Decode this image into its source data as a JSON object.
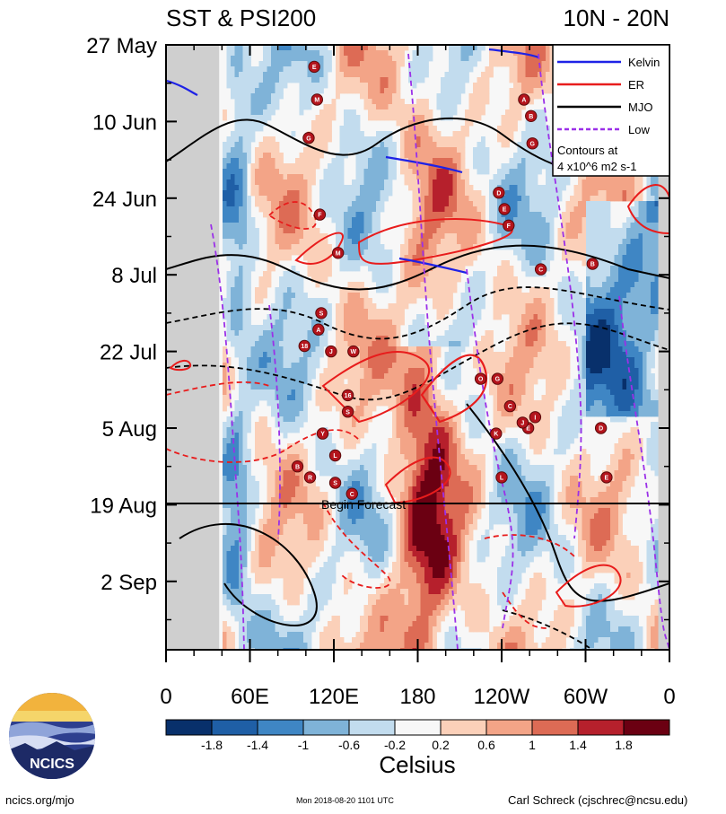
{
  "chart_data": {
    "type": "heatmap",
    "title_left": "SST & PSI200",
    "title_right": "10N - 20N",
    "y_tick_labels": [
      "27 May",
      "10 Jun",
      "24 Jun",
      "8 Jul",
      "22 Jul",
      "5 Aug",
      "19 Aug",
      "2 Sep"
    ],
    "x_tick_labels": [
      "0",
      "60E",
      "120E",
      "180",
      "120W",
      "60W",
      "0"
    ],
    "x_range_deg_east": [
      0,
      360
    ],
    "forecast_start": "19 Aug",
    "forecast_label": "Begin Forecast",
    "legend": {
      "entries": [
        {
          "name": "Kelvin",
          "color": "#1e22e6"
        },
        {
          "name": "ER",
          "color": "#e81c1c"
        },
        {
          "name": "MJO",
          "color": "#000000"
        },
        {
          "name": "Low",
          "color": "#9b30e8"
        }
      ],
      "note_line1": "Contours at",
      "note_line2": "4 x10^6 m2 s-1",
      "placement": "top-right"
    },
    "colorbar": {
      "unit_label": "Celsius",
      "tick_labels": [
        "-1.8",
        "-1.4",
        "-1",
        "-0.6",
        "-0.2",
        "0.2",
        "0.6",
        "1",
        "1.4",
        "1.8"
      ],
      "colors": [
        "#08306b",
        "#1f5fa6",
        "#3f86c4",
        "#7fb3d8",
        "#c2dcee",
        "#f7f7f7",
        "#fbd0b9",
        "#f3a487",
        "#dd6b55",
        "#b6202c",
        "#6b0012"
      ]
    },
    "storm_markers": [
      {
        "label": "E",
        "lon": 106,
        "date": "31 May"
      },
      {
        "label": "M",
        "lon": 108,
        "date": "6 Jun"
      },
      {
        "label": "G",
        "lon": 102,
        "date": "13 Jun"
      },
      {
        "label": "F",
        "lon": 110,
        "date": "27 Jun"
      },
      {
        "label": "M",
        "lon": 123,
        "date": "4 Jul"
      },
      {
        "label": "S",
        "lon": 111,
        "date": "15 Jul"
      },
      {
        "label": "A",
        "lon": 109,
        "date": "18 Jul"
      },
      {
        "label": "18",
        "lon": 99,
        "date": "21 Jul"
      },
      {
        "label": "J",
        "lon": 118,
        "date": "22 Jul"
      },
      {
        "label": "W",
        "lon": 134,
        "date": "22 Jul"
      },
      {
        "label": "16",
        "lon": 130,
        "date": "30 Jul"
      },
      {
        "label": "S",
        "lon": 130,
        "date": "2 Aug"
      },
      {
        "label": "Y",
        "lon": 112,
        "date": "6 Aug"
      },
      {
        "label": "L",
        "lon": 121,
        "date": "10 Aug"
      },
      {
        "label": "B",
        "lon": 94,
        "date": "12 Aug"
      },
      {
        "label": "R",
        "lon": 103,
        "date": "14 Aug"
      },
      {
        "label": "S",
        "lon": 121,
        "date": "15 Aug"
      },
      {
        "label": "C",
        "lon": 133,
        "date": "17 Aug"
      },
      {
        "label": "E",
        "lon": 259,
        "date": "5 Aug"
      },
      {
        "label": "O",
        "lon": 225,
        "date": "27 Jul"
      },
      {
        "label": "G",
        "lon": 237,
        "date": "27 Jul"
      },
      {
        "label": "C",
        "lon": 246,
        "date": "1 Aug"
      },
      {
        "label": "K",
        "lon": 236,
        "date": "6 Aug"
      },
      {
        "label": "J",
        "lon": 255,
        "date": "4 Aug"
      },
      {
        "label": "I",
        "lon": 264,
        "date": "3 Aug"
      },
      {
        "label": "L",
        "lon": 240,
        "date": "14 Aug"
      },
      {
        "label": "D",
        "lon": 238,
        "date": "23 Jun"
      },
      {
        "label": "E",
        "lon": 242,
        "date": "26 Jun"
      },
      {
        "label": "F",
        "lon": 245,
        "date": "29 Jun"
      },
      {
        "label": "C",
        "lon": 268,
        "date": "7 Jul"
      },
      {
        "label": "B",
        "lon": 305,
        "date": "6 Jul"
      },
      {
        "label": "A",
        "lon": 256,
        "date": "6 Jun"
      },
      {
        "label": "B",
        "lon": 261,
        "date": "9 Jun"
      },
      {
        "label": "G",
        "lon": 262,
        "date": "14 Jun"
      },
      {
        "label": "D",
        "lon": 311,
        "date": "5 Aug"
      },
      {
        "label": "E",
        "lon": 315,
        "date": "14 Aug"
      }
    ]
  },
  "brand": {
    "logo_text": "NCICS"
  },
  "footer": {
    "left": "ncics.org/mjo",
    "middle": "Mon 2018-08-20 1101 UTC",
    "right": "Carl Schreck (cjschrec@ncsu.edu)"
  }
}
